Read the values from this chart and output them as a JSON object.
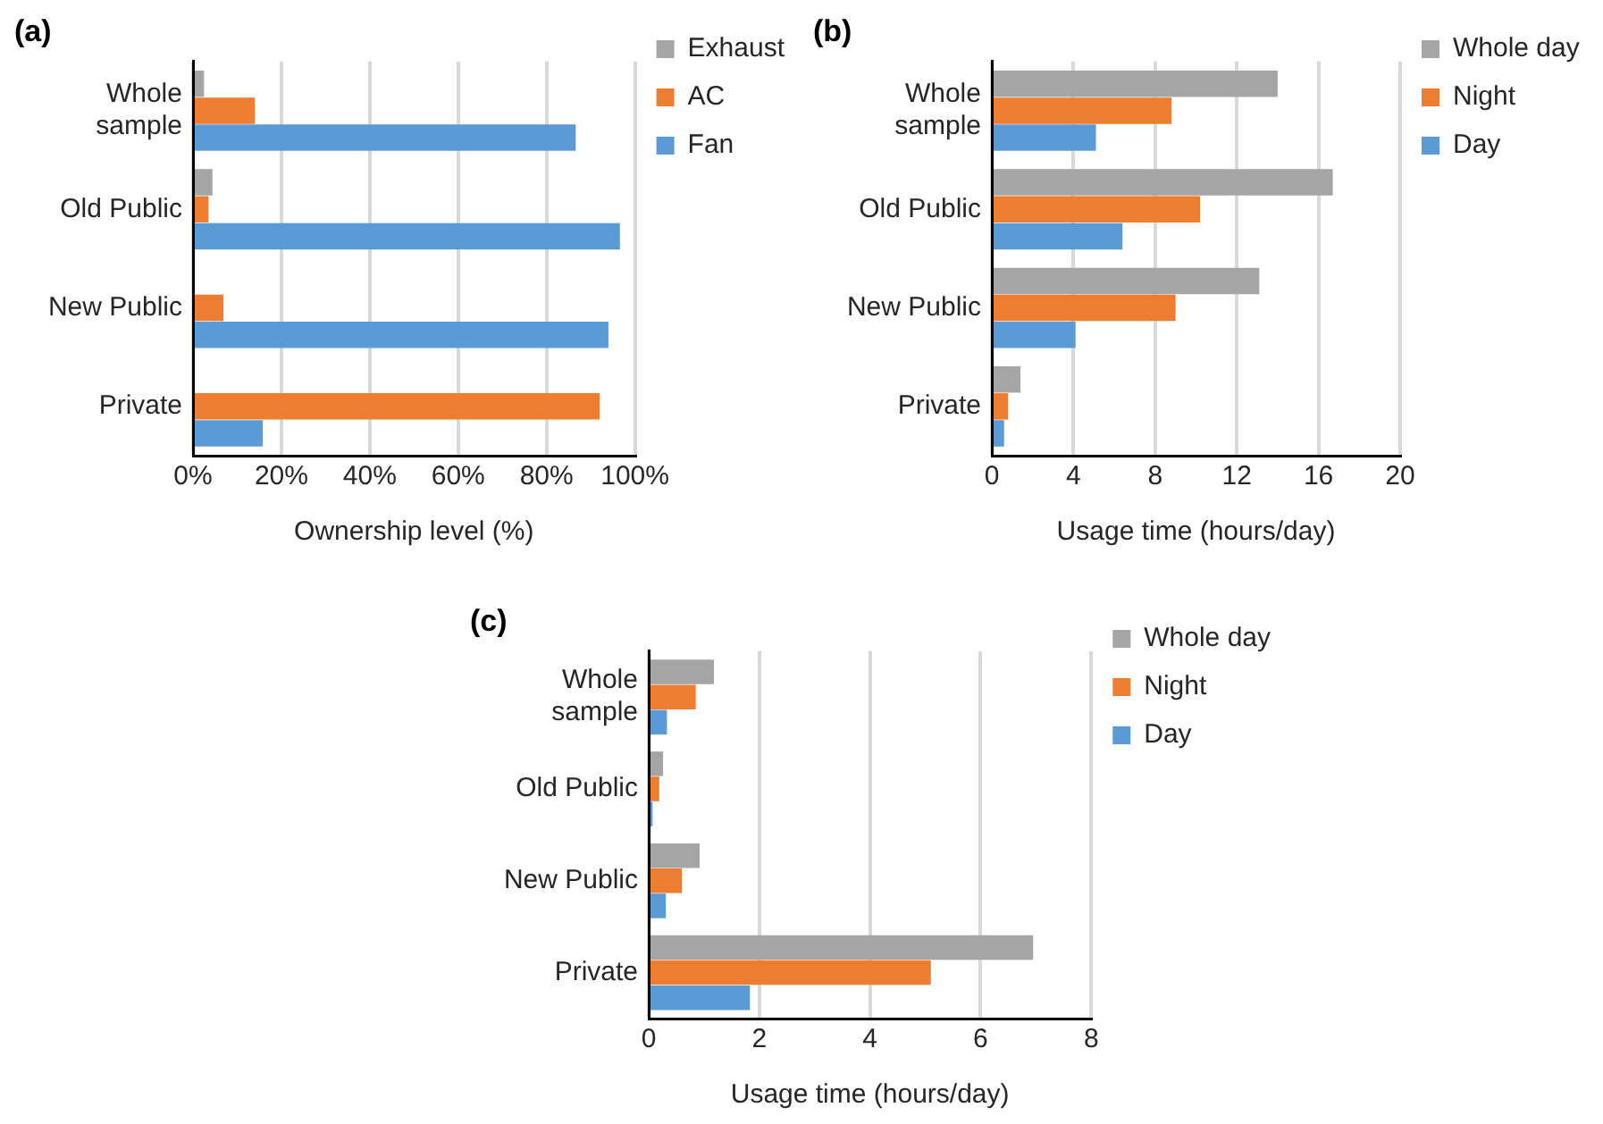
{
  "chart_data": [
    {
      "type": "bar",
      "title": "(a)",
      "xlabel": "Ownership level (%)",
      "orientation": "horizontal",
      "categories": [
        "Whole sample",
        "Old Public",
        "New Public",
        "Private"
      ],
      "series": [
        {
          "name": "Exhaust",
          "color": "#a5a5a5",
          "values": [
            2.5,
            4.4,
            0,
            0
          ]
        },
        {
          "name": "AC",
          "color": "#ed7d31",
          "values": [
            14,
            3.5,
            6.9,
            92
          ]
        },
        {
          "name": "Fan",
          "color": "#5b9bd5",
          "values": [
            86.6,
            96.6,
            94,
            15.8
          ]
        }
      ],
      "xlim": [
        0,
        100
      ],
      "xticks": [
        {
          "value": 0,
          "label": "0%"
        },
        {
          "value": 20,
          "label": "20%"
        },
        {
          "value": 40,
          "label": "40%"
        },
        {
          "value": 60,
          "label": "60%"
        },
        {
          "value": 80,
          "label": "80%"
        },
        {
          "value": 100,
          "label": "100%"
        }
      ],
      "grid": "x",
      "legend": "right"
    },
    {
      "type": "bar",
      "title": "(b)",
      "xlabel": "Usage time (hours/day)",
      "orientation": "horizontal",
      "categories": [
        "Whole sample",
        "Old Public",
        "New Public",
        "Private"
      ],
      "series": [
        {
          "name": "Whole day",
          "color": "#a5a5a5",
          "values": [
            14,
            16.7,
            13.1,
            1.4
          ]
        },
        {
          "name": "Night",
          "color": "#ed7d31",
          "values": [
            8.8,
            10.2,
            9,
            0.8
          ]
        },
        {
          "name": "Day",
          "color": "#5b9bd5",
          "values": [
            5.1,
            6.4,
            4.1,
            0.6
          ]
        }
      ],
      "xlim": [
        0,
        20
      ],
      "xticks": [
        0,
        4,
        8,
        12,
        16,
        20
      ],
      "grid": "x",
      "legend": "right"
    },
    {
      "type": "bar",
      "title": "(c)",
      "xlabel": "Usage time (hours/day)",
      "orientation": "horizontal",
      "categories": [
        "Whole sample",
        "Old Public",
        "New Public",
        "Private"
      ],
      "series": [
        {
          "name": "Whole day",
          "color": "#a5a5a5",
          "values": [
            1.18,
            0.26,
            0.92,
            6.95
          ]
        },
        {
          "name": "Night",
          "color": "#ed7d31",
          "values": [
            0.85,
            0.19,
            0.6,
            5.1
          ]
        },
        {
          "name": "Day",
          "color": "#5b9bd5",
          "values": [
            0.33,
            0.07,
            0.31,
            1.83
          ]
        }
      ],
      "xlim": [
        0,
        8
      ],
      "xticks": [
        0,
        2,
        4,
        6,
        8
      ],
      "grid": "x",
      "legend": "right"
    }
  ]
}
